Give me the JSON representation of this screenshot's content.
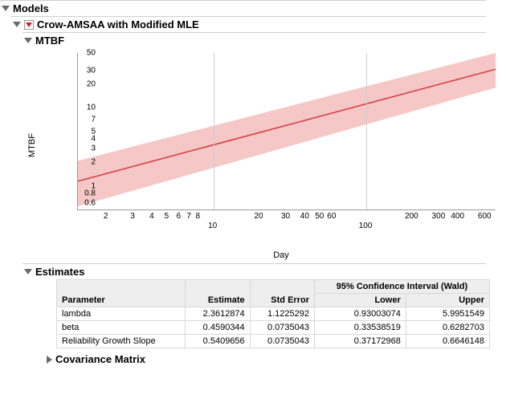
{
  "sections": {
    "models_title": "Models",
    "crow_title": "Crow-AMSAA with Modified MLE",
    "mtbf_title": "MTBF",
    "estimates_title": "Estimates",
    "covariance_title": "Covariance Matrix"
  },
  "chart": {
    "type": "line",
    "xlabel": "Day",
    "ylabel": "MTBF",
    "background_color": "#ffffff",
    "grid_color": "#e3e3e3",
    "line_color": "#d94040",
    "band_color": "rgba(233,130,130,0.45)",
    "line_width": 1.6,
    "y_scale": "log",
    "x_scale": "log",
    "y_ticks": [
      0.6,
      0.8,
      1,
      2,
      3,
      4,
      5,
      7,
      10,
      20,
      30,
      50
    ],
    "x_ticks_minor": [
      2,
      3,
      4,
      5,
      6,
      7,
      8,
      20,
      30,
      40,
      50,
      60,
      200,
      300,
      400,
      600
    ],
    "x_ticks_major": [
      10,
      100
    ],
    "ylim": [
      0.5,
      50
    ],
    "xlim": [
      1.3,
      700
    ],
    "lower_band": [
      [
        1.3,
        0.55
      ],
      [
        700,
        18
      ]
    ],
    "upper_band": [
      [
        1.3,
        2.1
      ],
      [
        700,
        50
      ]
    ],
    "center_line": [
      [
        1.3,
        1.15
      ],
      [
        700,
        31
      ]
    ]
  },
  "estimates": {
    "group_header": "95% Confidence Interval (Wald)",
    "columns": [
      "Parameter",
      "Estimate",
      "Std Error",
      "Lower",
      "Upper"
    ],
    "rows": [
      [
        "lambda",
        "2.3612874",
        "1.1225292",
        "0.93003074",
        "5.9951549"
      ],
      [
        "beta",
        "0.4590344",
        "0.0735043",
        "0.33538519",
        "0.6282703"
      ],
      [
        "Reliability Growth Slope",
        "0.5409656",
        "0.0735043",
        "0.37172968",
        "0.6646148"
      ]
    ]
  }
}
